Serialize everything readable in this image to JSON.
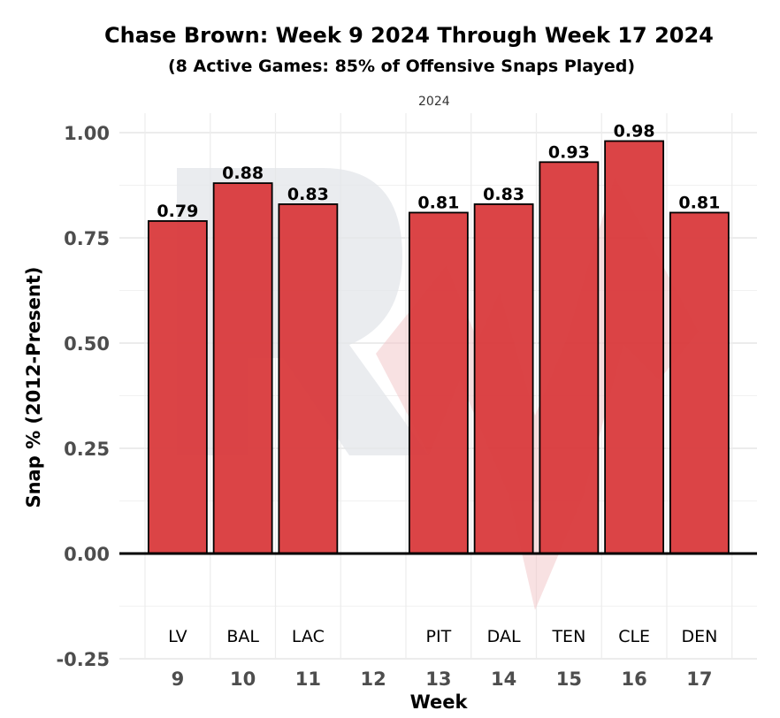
{
  "chart_data": {
    "type": "bar",
    "title": "Chase Brown: Week 9 2024 Through Week 17 2024",
    "subtitle": "(8 Active Games: 85% of Offensive Snaps Played)",
    "facet_label": "2024",
    "xlabel": "Week",
    "ylabel": "Snap % (2012-Present)",
    "ylim": [
      -0.25,
      1.0
    ],
    "y_ticks": [
      "1.00",
      "0.75",
      "0.50",
      "0.25",
      "0.00",
      "-0.25"
    ],
    "categories": [
      "9",
      "10",
      "11",
      "12",
      "13",
      "14",
      "15",
      "16",
      "17"
    ],
    "opponents": [
      "LV",
      "BAL",
      "LAC",
      "",
      "PIT",
      "DAL",
      "TEN",
      "CLE",
      "DEN"
    ],
    "values": [
      0.79,
      0.88,
      0.83,
      null,
      0.81,
      0.83,
      0.93,
      0.98,
      0.81
    ],
    "value_labels": [
      "0.79",
      "0.88",
      "0.83",
      "",
      "0.81",
      "0.83",
      "0.93",
      "0.98",
      "0.81"
    ],
    "grid": true,
    "bar_color": "#d93a3c",
    "bar_outline": "#000000",
    "watermark_color": "#e3e5ea"
  }
}
